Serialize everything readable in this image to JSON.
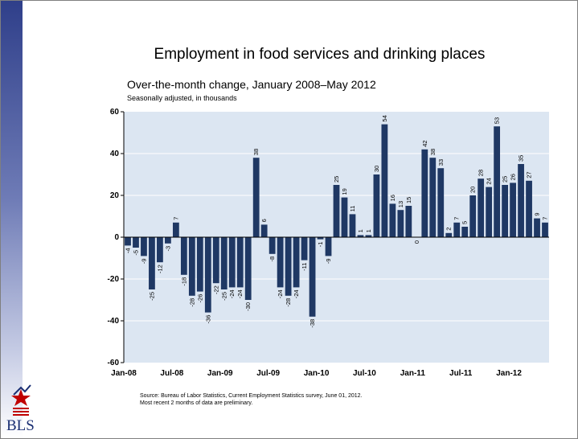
{
  "title": "Employment in food services and drinking places",
  "subtitle": "Over-the-month change, January 2008–May 2012",
  "unit_note": "Seasonally adjusted, in thousands",
  "source_line1": "Source: Bureau of Labor Statistics, Current Employment Statistics survey, June 01, 2012.",
  "source_line2": "Most recent 2 months of data are preliminary.",
  "logo_text": "BLS",
  "colors": {
    "bar": "#1f3864",
    "plot_bg": "#dce6f2",
    "gridline": "#ffffff",
    "axis": "#000000"
  },
  "chart_data": {
    "type": "bar",
    "title": "Employment in food services and drinking places",
    "subtitle": "Over-the-month change, January 2008–May 2012",
    "ylabel": "",
    "xlabel": "",
    "ylim": [
      -60,
      60
    ],
    "yticks": [
      -60,
      -40,
      -20,
      0,
      20,
      40,
      60
    ],
    "xticks": [
      {
        "label": "Jan-08",
        "index": 0
      },
      {
        "label": "Jul-08",
        "index": 6
      },
      {
        "label": "Jan-09",
        "index": 12
      },
      {
        "label": "Jul-09",
        "index": 18
      },
      {
        "label": "Jan-10",
        "index": 24
      },
      {
        "label": "Jul-10",
        "index": 30
      },
      {
        "label": "Jan-11",
        "index": 36
      },
      {
        "label": "Jul-11",
        "index": 42
      },
      {
        "label": "Jan-12",
        "index": 48
      }
    ],
    "grid": true,
    "legend": "none",
    "values": [
      -4,
      -5,
      -9,
      -25,
      -12,
      -3,
      7,
      -18,
      -28,
      -26,
      -36,
      -22,
      -25,
      -24,
      -24,
      -30,
      38,
      6,
      -8,
      -24,
      -28,
      -24,
      -11,
      -38,
      -1,
      -9,
      25,
      19,
      11,
      1,
      1,
      30,
      54,
      16,
      13,
      15,
      0,
      42,
      38,
      33,
      2,
      7,
      5,
      20,
      28,
      24,
      53,
      25,
      26,
      35,
      27,
      9,
      7
    ],
    "value_labels": [
      "-4",
      "-5",
      "-9",
      "-25",
      "-12",
      "-3",
      "7",
      "-18",
      "-28",
      "-26",
      "-36",
      "-22",
      "-25",
      "-24",
      "-24",
      "-30",
      "38",
      "6",
      "-8",
      "-24",
      "-28",
      "-24",
      "-11",
      "-38",
      "-1",
      "-9",
      "25",
      "19",
      "11",
      "1",
      "1",
      "30",
      "54",
      "16",
      "13",
      "15",
      "0",
      "42",
      "38",
      "33",
      "2",
      "7",
      "5",
      "20",
      "28",
      "24",
      "53",
      "25",
      "26",
      "35",
      "27",
      "9",
      "7"
    ]
  }
}
